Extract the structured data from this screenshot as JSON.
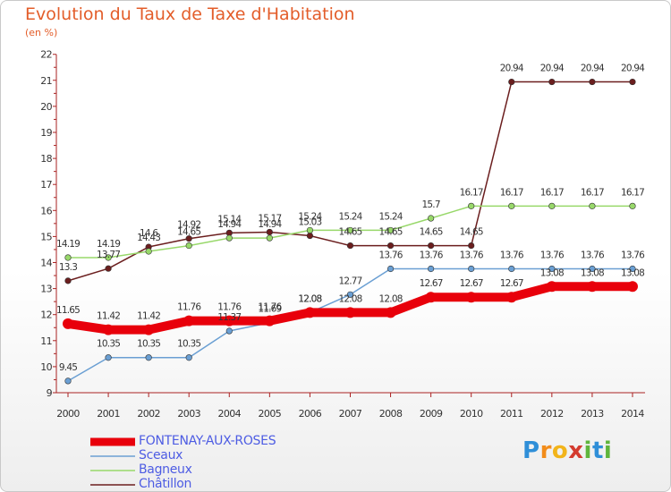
{
  "title": "Evolution du Taux de Taxe d'Habitation",
  "subtitle": "(en %)",
  "logo": {
    "text": "Proxiti",
    "colors": [
      "#2f8fd8",
      "#f28c1a",
      "#f2b41a",
      "#d43b2f",
      "#5fb53c",
      "#2f8fd8",
      "#5fb53c"
    ]
  },
  "chart_data": {
    "type": "line",
    "title": "Evolution du Taux de Taxe d'Habitation",
    "ylabel": "(en %)",
    "xlabel": "",
    "ylim": [
      9,
      22
    ],
    "yticks": [
      "9",
      "10",
      "11",
      "12",
      "13",
      "14",
      "15",
      "16",
      "17",
      "18",
      "19",
      "20",
      "21",
      "22"
    ],
    "categories": [
      "2000",
      "2001",
      "2002",
      "2003",
      "2004",
      "2005",
      "2006",
      "2007",
      "2008",
      "2009",
      "2010",
      "2011",
      "2012",
      "2013",
      "2014"
    ],
    "grid": false,
    "legend_position": "bottom-left",
    "series": [
      {
        "name": "FONTENAY-AUX-ROSES",
        "color": "#e8000b",
        "values": [
          11.65,
          11.42,
          11.42,
          11.76,
          11.76,
          11.76,
          12.08,
          12.08,
          12.08,
          12.67,
          12.67,
          12.67,
          13.08,
          13.08,
          13.08
        ],
        "labels": [
          "11.65",
          "11.42",
          "11.42",
          "11.76",
          "11.76",
          "11.76",
          "12.08",
          "12.08",
          "12.08",
          "12.67",
          "12.67",
          "12.67",
          "13.08",
          "13.08",
          "13.08"
        ]
      },
      {
        "name": "Sceaux",
        "color": "#6a9fd3",
        "values": [
          9.45,
          10.35,
          10.35,
          10.35,
          11.37,
          11.69,
          12.08,
          12.77,
          13.76,
          13.76,
          13.76,
          13.76,
          13.76,
          13.76,
          13.76
        ],
        "labels": [
          "9.45",
          "10.35",
          "10.35",
          "10.35",
          "11.37",
          "11.69",
          "12.08",
          "12.77",
          "13.76",
          "13.76",
          "13.76",
          "13.76",
          "13.76",
          "13.76",
          "13.76"
        ]
      },
      {
        "name": "Bagneux",
        "color": "#98d86a",
        "values": [
          14.19,
          14.19,
          14.43,
          14.65,
          14.94,
          14.94,
          15.24,
          15.24,
          15.24,
          15.7,
          16.17,
          16.17,
          16.17,
          16.17,
          16.17
        ],
        "labels": [
          "14.19",
          "14.19",
          "14.43",
          "14.65",
          "14.94",
          "14.94",
          "15.24",
          "15.24",
          "15.24",
          "15.7",
          "16.17",
          "16.17",
          "16.17",
          "16.17",
          "16.17"
        ]
      },
      {
        "name": "Châtillon",
        "color": "#6b1e1e",
        "values": [
          13.3,
          13.77,
          14.6,
          14.92,
          15.14,
          15.17,
          15.03,
          14.65,
          14.65,
          14.65,
          14.65,
          20.94,
          20.94,
          20.94,
          20.94
        ],
        "labels": [
          "13.3",
          "13.77",
          "14.6",
          "14.92",
          "15.14",
          "15.17",
          "15.03",
          "14.65",
          "14.65",
          "14.65",
          "14.65",
          "20.94",
          "20.94",
          "20.94",
          "20.94"
        ]
      }
    ]
  }
}
